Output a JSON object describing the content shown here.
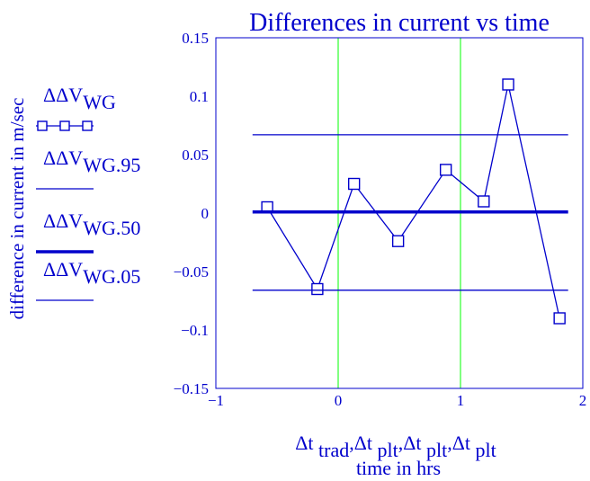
{
  "chart_data": {
    "type": "line",
    "title": "Differences in current vs time",
    "ylabel": "difference in current in m/sec",
    "xlabel": {
      "base": "Δt",
      "subs": [
        "trad",
        "plt",
        "plt",
        "plt"
      ],
      "line2": "time in hrs"
    },
    "xlim": [
      -1,
      2
    ],
    "ylim": [
      -0.15,
      0.15
    ],
    "x_ticks": [
      -1,
      0,
      1,
      2
    ],
    "x_tick_labels": [
      "−1",
      "0",
      "1",
      "2"
    ],
    "y_ticks": [
      0.15,
      0.1,
      0.05,
      0,
      -0.05,
      -0.1,
      -0.15
    ],
    "y_tick_labels": [
      "0.15",
      "0.1",
      "0.05",
      "0",
      "−0.05",
      "−0.1",
      "−0.15"
    ],
    "grid_x": [
      0,
      1
    ],
    "grid_color": "#00ff00",
    "series_color": "#0000cc",
    "legend": [
      {
        "main": "ΔΔV",
        "sub": "WG",
        "style": "line-square-markers"
      },
      {
        "main": "ΔΔV",
        "sub": "WG.95",
        "style": "thin-line"
      },
      {
        "main": "ΔΔV",
        "sub": "WG.50",
        "style": "thick-line"
      },
      {
        "main": "ΔΔV",
        "sub": "WG.05",
        "style": "thin-line"
      }
    ],
    "series": [
      {
        "legend_index": 0,
        "style": "line-square-markers",
        "x": [
          -0.58,
          -0.17,
          0.13,
          0.49,
          0.88,
          1.19,
          1.39,
          1.81
        ],
        "y": [
          0.005,
          -0.065,
          0.025,
          -0.024,
          0.037,
          0.01,
          0.11,
          -0.09
        ]
      },
      {
        "legend_index": 1,
        "style": "thin-line",
        "x": [
          -0.7,
          1.88
        ],
        "y": [
          0.067,
          0.067
        ]
      },
      {
        "legend_index": 2,
        "style": "thick-line",
        "x": [
          -0.7,
          1.88
        ],
        "y": [
          0.001,
          0.001
        ]
      },
      {
        "legend_index": 3,
        "style": "thin-line",
        "x": [
          -0.7,
          1.88
        ],
        "y": [
          -0.066,
          -0.066
        ]
      }
    ]
  }
}
